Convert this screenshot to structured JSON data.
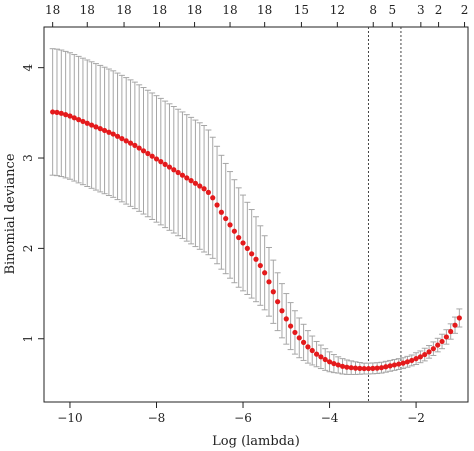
{
  "chart_data": {
    "type": "scatter",
    "xlabel": "Log (lambda)",
    "ylabel": "Binomial deviance",
    "xlim": [
      -10.6,
      -0.8
    ],
    "ylim": [
      0.3,
      4.45
    ],
    "x_ticks": [
      -10,
      -8,
      -6,
      -4,
      -2
    ],
    "x_tick_labels": [
      "−10",
      "−8",
      "−6",
      "−4",
      "−2"
    ],
    "y_ticks": [
      1,
      2,
      3,
      4
    ],
    "y_tick_labels": [
      "1",
      "2",
      "3",
      "4"
    ],
    "top_ticks": [
      {
        "x": -10.4,
        "label": "18"
      },
      {
        "x": -9.6,
        "label": "18"
      },
      {
        "x": -8.75,
        "label": "18"
      },
      {
        "x": -7.93,
        "label": "18"
      },
      {
        "x": -7.12,
        "label": "18"
      },
      {
        "x": -6.3,
        "label": "18"
      },
      {
        "x": -5.5,
        "label": "18"
      },
      {
        "x": -4.65,
        "label": "15"
      },
      {
        "x": -3.82,
        "label": "12"
      },
      {
        "x": -2.99,
        "label": "8"
      },
      {
        "x": -2.55,
        "label": "5"
      },
      {
        "x": -1.89,
        "label": "3"
      },
      {
        "x": -1.48,
        "label": "2"
      },
      {
        "x": -0.88,
        "label": "2"
      }
    ],
    "vlines": [
      -3.1,
      -2.35
    ],
    "grid": false,
    "colors": {
      "points": "#e41a1c",
      "errorbars": "#a6a6a6",
      "axis": "#222222",
      "vline": "#444444"
    },
    "series": [
      {
        "x": [
          -10.4,
          -10.3,
          -10.2,
          -10.1,
          -10.0,
          -9.9,
          -9.8,
          -9.7,
          -9.6,
          -9.5,
          -9.4,
          -9.3,
          -9.2,
          -9.1,
          -9.0,
          -8.9,
          -8.8,
          -8.7,
          -8.6,
          -8.5,
          -8.4,
          -8.3,
          -8.2,
          -8.1,
          -8.0,
          -7.9,
          -7.8,
          -7.7,
          -7.6,
          -7.5,
          -7.4,
          -7.3,
          -7.2,
          -7.1,
          -7.0,
          -6.9,
          -6.8,
          -6.7,
          -6.6,
          -6.5,
          -6.4,
          -6.3,
          -6.2,
          -6.1,
          -6.0,
          -5.9,
          -5.8,
          -5.7,
          -5.6,
          -5.5,
          -5.4,
          -5.3,
          -5.2,
          -5.1,
          -5.0,
          -4.9,
          -4.8,
          -4.7,
          -4.6,
          -4.5,
          -4.4,
          -4.3,
          -4.2,
          -4.1,
          -4.0,
          -3.9,
          -3.8,
          -3.7,
          -3.6,
          -3.5,
          -3.4,
          -3.3,
          -3.2,
          -3.1,
          -3.0,
          -2.9,
          -2.8,
          -2.7,
          -2.6,
          -2.5,
          -2.4,
          -2.3,
          -2.2,
          -2.1,
          -2.0,
          -1.9,
          -1.8,
          -1.7,
          -1.6,
          -1.5,
          -1.4,
          -1.3,
          -1.2,
          -1.1,
          -1.0
        ],
        "y": [
          3.51,
          3.505,
          3.495,
          3.48,
          3.465,
          3.445,
          3.425,
          3.405,
          3.385,
          3.365,
          3.345,
          3.325,
          3.305,
          3.285,
          3.265,
          3.24,
          3.215,
          3.19,
          3.165,
          3.14,
          3.11,
          3.08,
          3.05,
          3.02,
          2.99,
          2.96,
          2.93,
          2.9,
          2.87,
          2.84,
          2.81,
          2.78,
          2.75,
          2.72,
          2.69,
          2.66,
          2.62,
          2.56,
          2.48,
          2.4,
          2.33,
          2.26,
          2.19,
          2.12,
          2.06,
          2.0,
          1.94,
          1.88,
          1.81,
          1.73,
          1.63,
          1.52,
          1.41,
          1.31,
          1.22,
          1.14,
          1.07,
          1.01,
          0.96,
          0.91,
          0.87,
          0.83,
          0.8,
          0.77,
          0.745,
          0.725,
          0.71,
          0.695,
          0.685,
          0.68,
          0.675,
          0.672,
          0.67,
          0.67,
          0.672,
          0.675,
          0.68,
          0.69,
          0.7,
          0.71,
          0.72,
          0.73,
          0.745,
          0.76,
          0.78,
          0.8,
          0.825,
          0.855,
          0.89,
          0.93,
          0.97,
          1.02,
          1.08,
          1.15,
          1.23
        ],
        "err": [
          0.7,
          0.7,
          0.7,
          0.7,
          0.7,
          0.7,
          0.7,
          0.7,
          0.7,
          0.7,
          0.7,
          0.7,
          0.7,
          0.7,
          0.7,
          0.7,
          0.7,
          0.7,
          0.7,
          0.7,
          0.7,
          0.7,
          0.7,
          0.7,
          0.7,
          0.7,
          0.7,
          0.7,
          0.7,
          0.7,
          0.7,
          0.7,
          0.7,
          0.7,
          0.7,
          0.7,
          0.69,
          0.67,
          0.65,
          0.63,
          0.61,
          0.59,
          0.57,
          0.55,
          0.53,
          0.51,
          0.49,
          0.47,
          0.44,
          0.41,
          0.38,
          0.35,
          0.32,
          0.3,
          0.28,
          0.26,
          0.24,
          0.22,
          0.2,
          0.18,
          0.16,
          0.14,
          0.13,
          0.12,
          0.11,
          0.1,
          0.09,
          0.085,
          0.08,
          0.075,
          0.07,
          0.065,
          0.06,
          0.06,
          0.06,
          0.06,
          0.06,
          0.06,
          0.06,
          0.06,
          0.06,
          0.06,
          0.06,
          0.06,
          0.065,
          0.065,
          0.07,
          0.07,
          0.075,
          0.075,
          0.08,
          0.08,
          0.085,
          0.09,
          0.1
        ]
      }
    ]
  }
}
